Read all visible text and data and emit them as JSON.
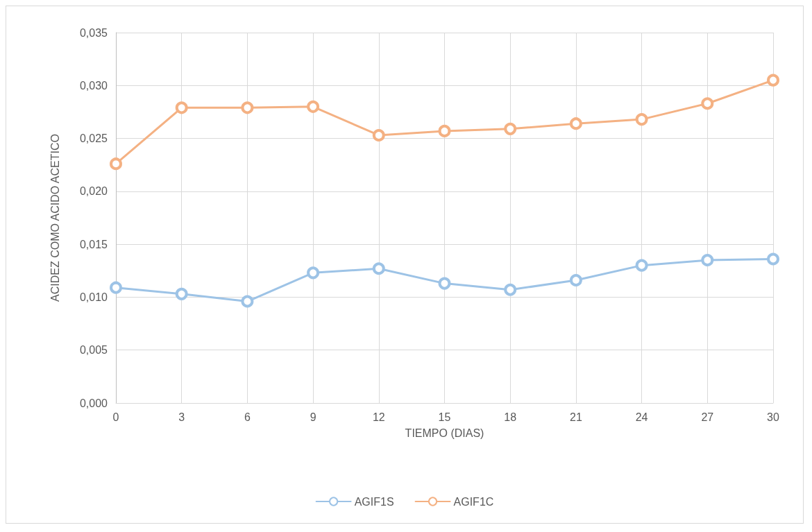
{
  "chart_data": {
    "type": "line",
    "xlabel": "TIEMPO (DIAS)",
    "ylabel": "ACIDEZ COMO ACIDO ACETICO",
    "x": [
      0,
      3,
      6,
      9,
      12,
      15,
      18,
      21,
      24,
      27,
      30
    ],
    "series": [
      {
        "name": "AGIF1S",
        "color": "#9dc3e6",
        "values": [
          0.0109,
          0.0103,
          0.0096,
          0.0123,
          0.0127,
          0.0113,
          0.0107,
          0.0116,
          0.013,
          0.0135,
          0.0136
        ]
      },
      {
        "name": "AGIF1C",
        "color": "#f4b183",
        "values": [
          0.0226,
          0.0279,
          0.0279,
          0.028,
          0.0253,
          0.0257,
          0.0259,
          0.0264,
          0.0268,
          0.0283,
          0.0305
        ]
      }
    ],
    "xlim": [
      0,
      30
    ],
    "xticks": [
      0,
      3,
      6,
      9,
      12,
      15,
      18,
      21,
      24,
      27,
      30
    ],
    "ylim": [
      0,
      0.035
    ],
    "yticks": [
      {
        "value": 0,
        "label": "0,000"
      },
      {
        "value": 0.005,
        "label": "0,005"
      },
      {
        "value": 0.01,
        "label": "0,010"
      },
      {
        "value": 0.015,
        "label": "0,015"
      },
      {
        "value": 0.02,
        "label": "0,020"
      },
      {
        "value": 0.025,
        "label": "0,025"
      },
      {
        "value": 0.03,
        "label": "0,030"
      },
      {
        "value": 0.035,
        "label": "0,035"
      }
    ],
    "grid": true,
    "legend": "bottom",
    "marker": "circle",
    "line_style": "solid"
  }
}
